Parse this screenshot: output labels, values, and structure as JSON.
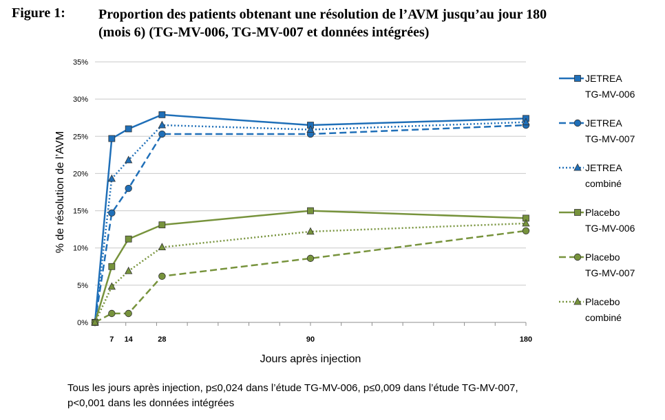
{
  "figure": {
    "label": "Figure 1:",
    "title_lines": [
      "Proportion des patients obtenant une résolution de l’AVM jusqu’au jour 180",
      "(mois 6) (TG-MV-006, TG-MV-007 et données intégrées)"
    ]
  },
  "chart_data": {
    "type": "line",
    "xlabel": "Jours après injection",
    "ylabel": "% de résolution de l’AVM",
    "x": [
      0,
      7,
      14,
      28,
      90,
      180
    ],
    "x_tick_labels": [
      "",
      "7",
      "14",
      "28",
      "90",
      "180"
    ],
    "xlim": [
      0,
      180
    ],
    "ylim": [
      0,
      35
    ],
    "y_ticks": [
      0,
      5,
      10,
      15,
      20,
      25,
      30,
      35
    ],
    "y_tick_labels": [
      "0%",
      "5%",
      "10%",
      "15%",
      "20%",
      "25%",
      "30%",
      "35%"
    ],
    "grid": "horizontal",
    "legend_position": "right",
    "series": [
      {
        "name_lines": [
          "JETREA",
          "TG-MV-006"
        ],
        "color": "#1f6fb8",
        "dash": "solid",
        "marker": "square",
        "values": [
          0,
          24.7,
          26.0,
          27.9,
          26.5,
          27.4
        ]
      },
      {
        "name_lines": [
          "JETREA",
          "TG-MV-007"
        ],
        "color": "#1f6fb8",
        "dash": "dashed",
        "marker": "circle",
        "values": [
          0,
          14.7,
          18.0,
          25.3,
          25.3,
          26.5
        ]
      },
      {
        "name_lines": [
          "JETREA",
          "combiné"
        ],
        "color": "#1f6fb8",
        "dash": "dotted",
        "marker": "triangle",
        "values": [
          0,
          19.3,
          21.8,
          26.5,
          25.9,
          26.9
        ]
      },
      {
        "name_lines": [
          "Placebo",
          "TG-MV-006"
        ],
        "color": "#77933c",
        "dash": "solid",
        "marker": "square",
        "values": [
          0,
          7.5,
          11.2,
          13.1,
          15.0,
          14.0
        ]
      },
      {
        "name_lines": [
          "Placebo",
          "TG-MV-007"
        ],
        "color": "#77933c",
        "dash": "dashed",
        "marker": "circle",
        "values": [
          0,
          1.2,
          1.2,
          6.2,
          8.6,
          12.3
        ]
      },
      {
        "name_lines": [
          "Placebo",
          "combiné"
        ],
        "color": "#77933c",
        "dash": "dotted",
        "marker": "triangle",
        "values": [
          0,
          4.8,
          6.9,
          10.1,
          12.2,
          13.3
        ]
      }
    ]
  },
  "footnote_lines": [
    "Tous les jours après injection, p≤0,024 dans l’étude TG-MV-006, p≤0,009 dans l’étude TG-MV-007,",
    "p<0,001 dans les données intégrées"
  ]
}
